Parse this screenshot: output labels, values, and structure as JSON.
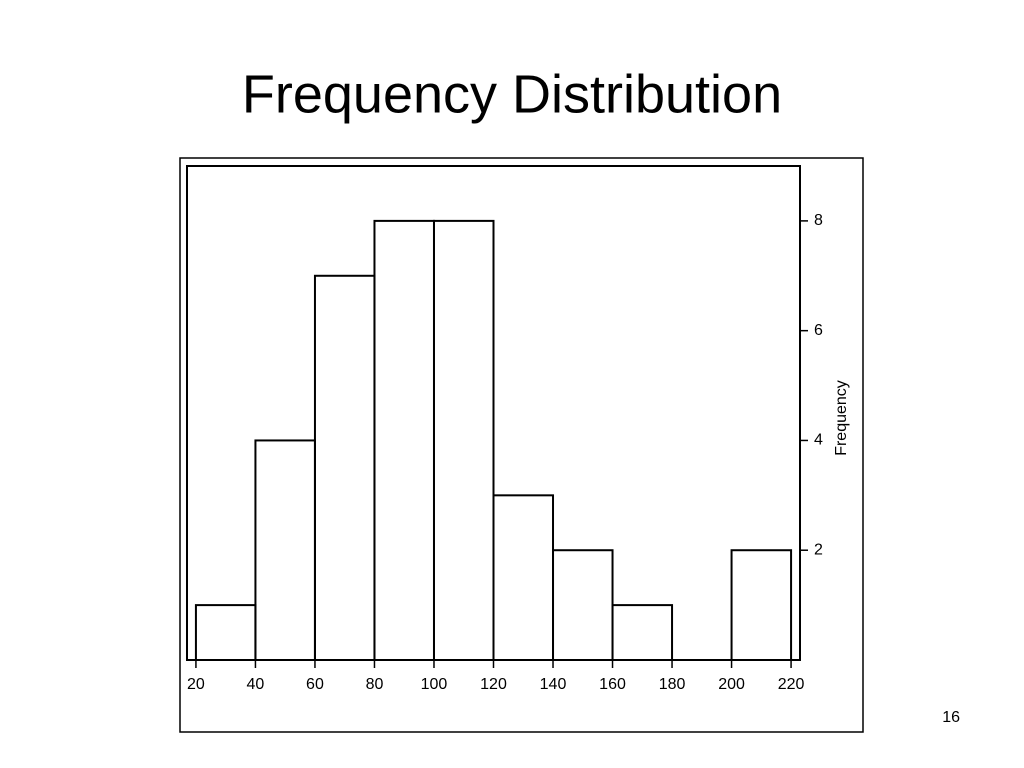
{
  "chart_data": {
    "type": "histogram",
    "title": "Frequency Distribution",
    "ylabel": "Frequency",
    "bins": [
      20,
      40,
      60,
      80,
      100,
      120,
      140,
      160,
      180,
      200,
      220
    ],
    "values": [
      1,
      4,
      7,
      8,
      8,
      3,
      2,
      1,
      0,
      2
    ],
    "color": "#000000",
    "xlim": [
      17,
      223
    ],
    "xticks": [
      20,
      40,
      60,
      80,
      100,
      120,
      140,
      160,
      180,
      200,
      220
    ],
    "ylim": [
      0,
      9
    ],
    "yticks": [
      2,
      4,
      6,
      8
    ],
    "y_axis_side": "right",
    "grid": false
  },
  "page_number": 16
}
